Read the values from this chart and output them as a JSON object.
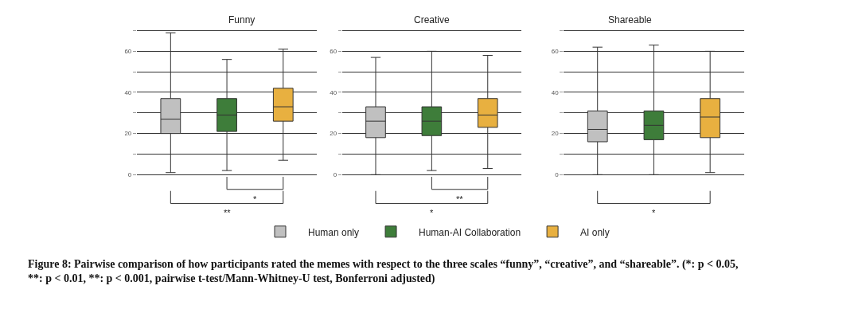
{
  "chart_data": [
    {
      "type": "box",
      "title": "Funny",
      "categories": [
        null,
        null,
        null
      ],
      "ylim": [
        0,
        70
      ],
      "yticks": [
        0,
        {
          "value": 10,
          "label": null
        },
        20,
        {
          "value": 30,
          "label": null
        },
        40,
        {
          "value": 50,
          "label": null
        },
        60,
        {
          "value": 70,
          "label": null
        }
      ],
      "grid": "y",
      "legend": false,
      "annotations": [
        "*",
        "**"
      ],
      "series": [
        {
          "color": "#c0c0c0",
          "boxes": [
            {
              "low": 1,
              "q1": 20,
              "median": 27,
              "q3": 37,
              "high": 69
            },
            null,
            null
          ]
        },
        {
          "color": "#3e7d3a",
          "boxes": [
            null,
            {
              "low": 2,
              "q1": 21,
              "median": 29,
              "q3": 37,
              "high": 56
            },
            null
          ]
        },
        {
          "color": "#e8b040",
          "boxes": [
            null,
            null,
            {
              "low": 7,
              "q1": 26,
              "median": 33,
              "q3": 42,
              "high": 61
            }
          ]
        }
      ]
    },
    {
      "type": "box",
      "title": "Creative",
      "categories": [
        null,
        null,
        null
      ],
      "ylim": [
        0,
        70
      ],
      "yticks": [
        0,
        {
          "value": 10,
          "label": null
        },
        20,
        {
          "value": 30,
          "label": null
        },
        40,
        {
          "value": 50,
          "label": null
        },
        60,
        {
          "value": 70,
          "label": null
        }
      ],
      "grid": "y",
      "legend": "bottom",
      "annotations": [
        "**",
        "*"
      ],
      "series": [
        {
          "name": "Human only",
          "color": "#c0c0c0",
          "boxes": [
            {
              "low": 0,
              "q1": 18,
              "median": 26,
              "q3": 33,
              "high": 57
            },
            null,
            null
          ]
        },
        {
          "name": "Human-AI Collaboration",
          "color": "#3e7d3a",
          "boxes": [
            null,
            {
              "low": 2,
              "q1": 19,
              "median": 26,
              "q3": 33,
              "high": 60
            },
            null
          ]
        },
        {
          "name": "AI only",
          "color": "#e8b040",
          "boxes": [
            null,
            null,
            {
              "low": 3,
              "q1": 23,
              "median": 29,
              "q3": 37,
              "high": 58
            }
          ]
        }
      ]
    },
    {
      "type": "box",
      "title": "Shareable",
      "categories": [
        null,
        null,
        null
      ],
      "ylim": [
        0,
        70
      ],
      "yticks": [
        0,
        {
          "value": 10,
          "label": null
        },
        20,
        {
          "value": 30,
          "label": null
        },
        40,
        {
          "value": 50,
          "label": null
        },
        60,
        {
          "value": 70,
          "label": null
        }
      ],
      "grid": "y",
      "legend": false,
      "annotations": [
        "*"
      ],
      "series": [
        {
          "color": "#c0c0c0",
          "boxes": [
            {
              "low": 0,
              "q1": 16,
              "median": 22,
              "q3": 31,
              "high": 62
            },
            null,
            null
          ]
        },
        {
          "color": "#3e7d3a",
          "boxes": [
            null,
            {
              "low": 0,
              "q1": 17,
              "median": 24,
              "q3": 31,
              "high": 63
            },
            null
          ]
        },
        {
          "color": "#e8b040",
          "boxes": [
            null,
            null,
            {
              "low": 1,
              "q1": 18,
              "median": 28,
              "q3": 37,
              "high": 60
            }
          ]
        }
      ]
    },
    {
      "type": "other",
      "annotations": [
        "Figure 8: Pairwise comparison of how participants rated the memes with respect to the three scales “funny”, “creative”, and “shareable”. (*: p < 0.05, **: p < 0.01, **: p < 0.001, pairwise t-test/Mann-Whitney-U test, Bonferroni adjusted)"
      ]
    }
  ]
}
